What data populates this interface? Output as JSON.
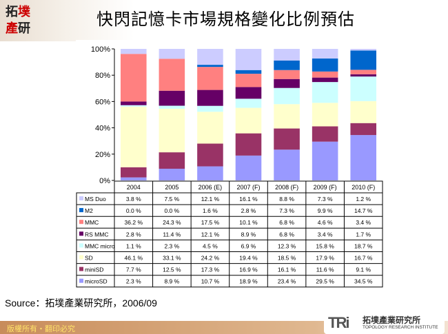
{
  "header": {
    "logo_text": "拓墣產研",
    "title": "快閃記憶卡市場規格變化比例預估"
  },
  "chart_data": {
    "type": "bar",
    "stacked": true,
    "ylim": [
      0,
      100
    ],
    "y_ticks": [
      "0%",
      "20%",
      "40%",
      "60%",
      "80%",
      "100%"
    ],
    "categories": [
      "2004",
      "2005",
      "2006 (E)",
      "2007 (F)",
      "2008 (F)",
      "2009 (F)",
      "2010 (F)"
    ],
    "series": [
      {
        "name": "MS Duo",
        "color": "#ccccff",
        "values": [
          3.8,
          7.5,
          12.1,
          16.1,
          8.8,
          7.3,
          1.2
        ]
      },
      {
        "name": "M2",
        "color": "#0066cc",
        "values": [
          0.0,
          0.0,
          1.6,
          2.8,
          7.3,
          9.9,
          14.7
        ]
      },
      {
        "name": "MMC",
        "color": "#ff8080",
        "values": [
          36.2,
          24.3,
          17.5,
          10.1,
          6.8,
          4.6,
          3.4
        ]
      },
      {
        "name": "RS MMC",
        "color": "#660066",
        "values": [
          2.8,
          11.4,
          12.1,
          8.9,
          6.8,
          3.4,
          1.7
        ]
      },
      {
        "name": "MMC micro",
        "color": "#ccffff",
        "values": [
          1.1,
          2.3,
          4.5,
          6.9,
          12.3,
          15.8,
          18.7
        ]
      },
      {
        "name": "SD",
        "color": "#ffffcc",
        "values": [
          46.1,
          33.1,
          24.2,
          19.4,
          18.5,
          17.9,
          16.7
        ]
      },
      {
        "name": "miniSD",
        "color": "#993366",
        "values": [
          7.7,
          12.5,
          17.3,
          16.9,
          16.1,
          11.6,
          9.1
        ]
      },
      {
        "name": "microSD",
        "color": "#9999ff",
        "values": [
          2.3,
          8.9,
          10.7,
          18.9,
          23.4,
          29.5,
          34.5
        ]
      }
    ],
    "value_labels": [
      [
        "3.8 %",
        "7.5 %",
        "12.1 %",
        "16.1 %",
        "8.8 %",
        "7.3 %",
        "1.2 %"
      ],
      [
        "0.0 %",
        "0.0 %",
        "1.6 %",
        "2.8 %",
        "7.3 %",
        "9.9 %",
        "14.7 %"
      ],
      [
        "36.2 %",
        "24.3 %",
        "17.5 %",
        "10.1 %",
        "6.8 %",
        "4.6 %",
        "3.4 %"
      ],
      [
        "2.8 %",
        "11.4 %",
        "12.1 %",
        "8.9 %",
        "6.8 %",
        "3.4 %",
        "1.7 %"
      ],
      [
        "1.1 %",
        "2.3 %",
        "4.5 %",
        "6.9 %",
        "12.3 %",
        "15.8 %",
        "18.7 %"
      ],
      [
        "46.1 %",
        "33.1 %",
        "24.2 %",
        "19.4 %",
        "18.5 %",
        "17.9 %",
        "16.7 %"
      ],
      [
        "7.7 %",
        "12.5 %",
        "17.3 %",
        "16.9 %",
        "16.1 %",
        "11.6 %",
        "9.1 %"
      ],
      [
        "2.3 %",
        "8.9 %",
        "10.7 %",
        "18.9 %",
        "23.4 %",
        "29.5 %",
        "34.5 %"
      ]
    ]
  },
  "source": "Source：拓墣產業研究所，2006/09",
  "footer": {
    "copyright": "版權所有・翻印必究",
    "brand_logo": "TRi",
    "brand_zh": "拓墣產業研究所",
    "brand_en": "TOPOLOGY RESEARCH INSTITUTE"
  }
}
